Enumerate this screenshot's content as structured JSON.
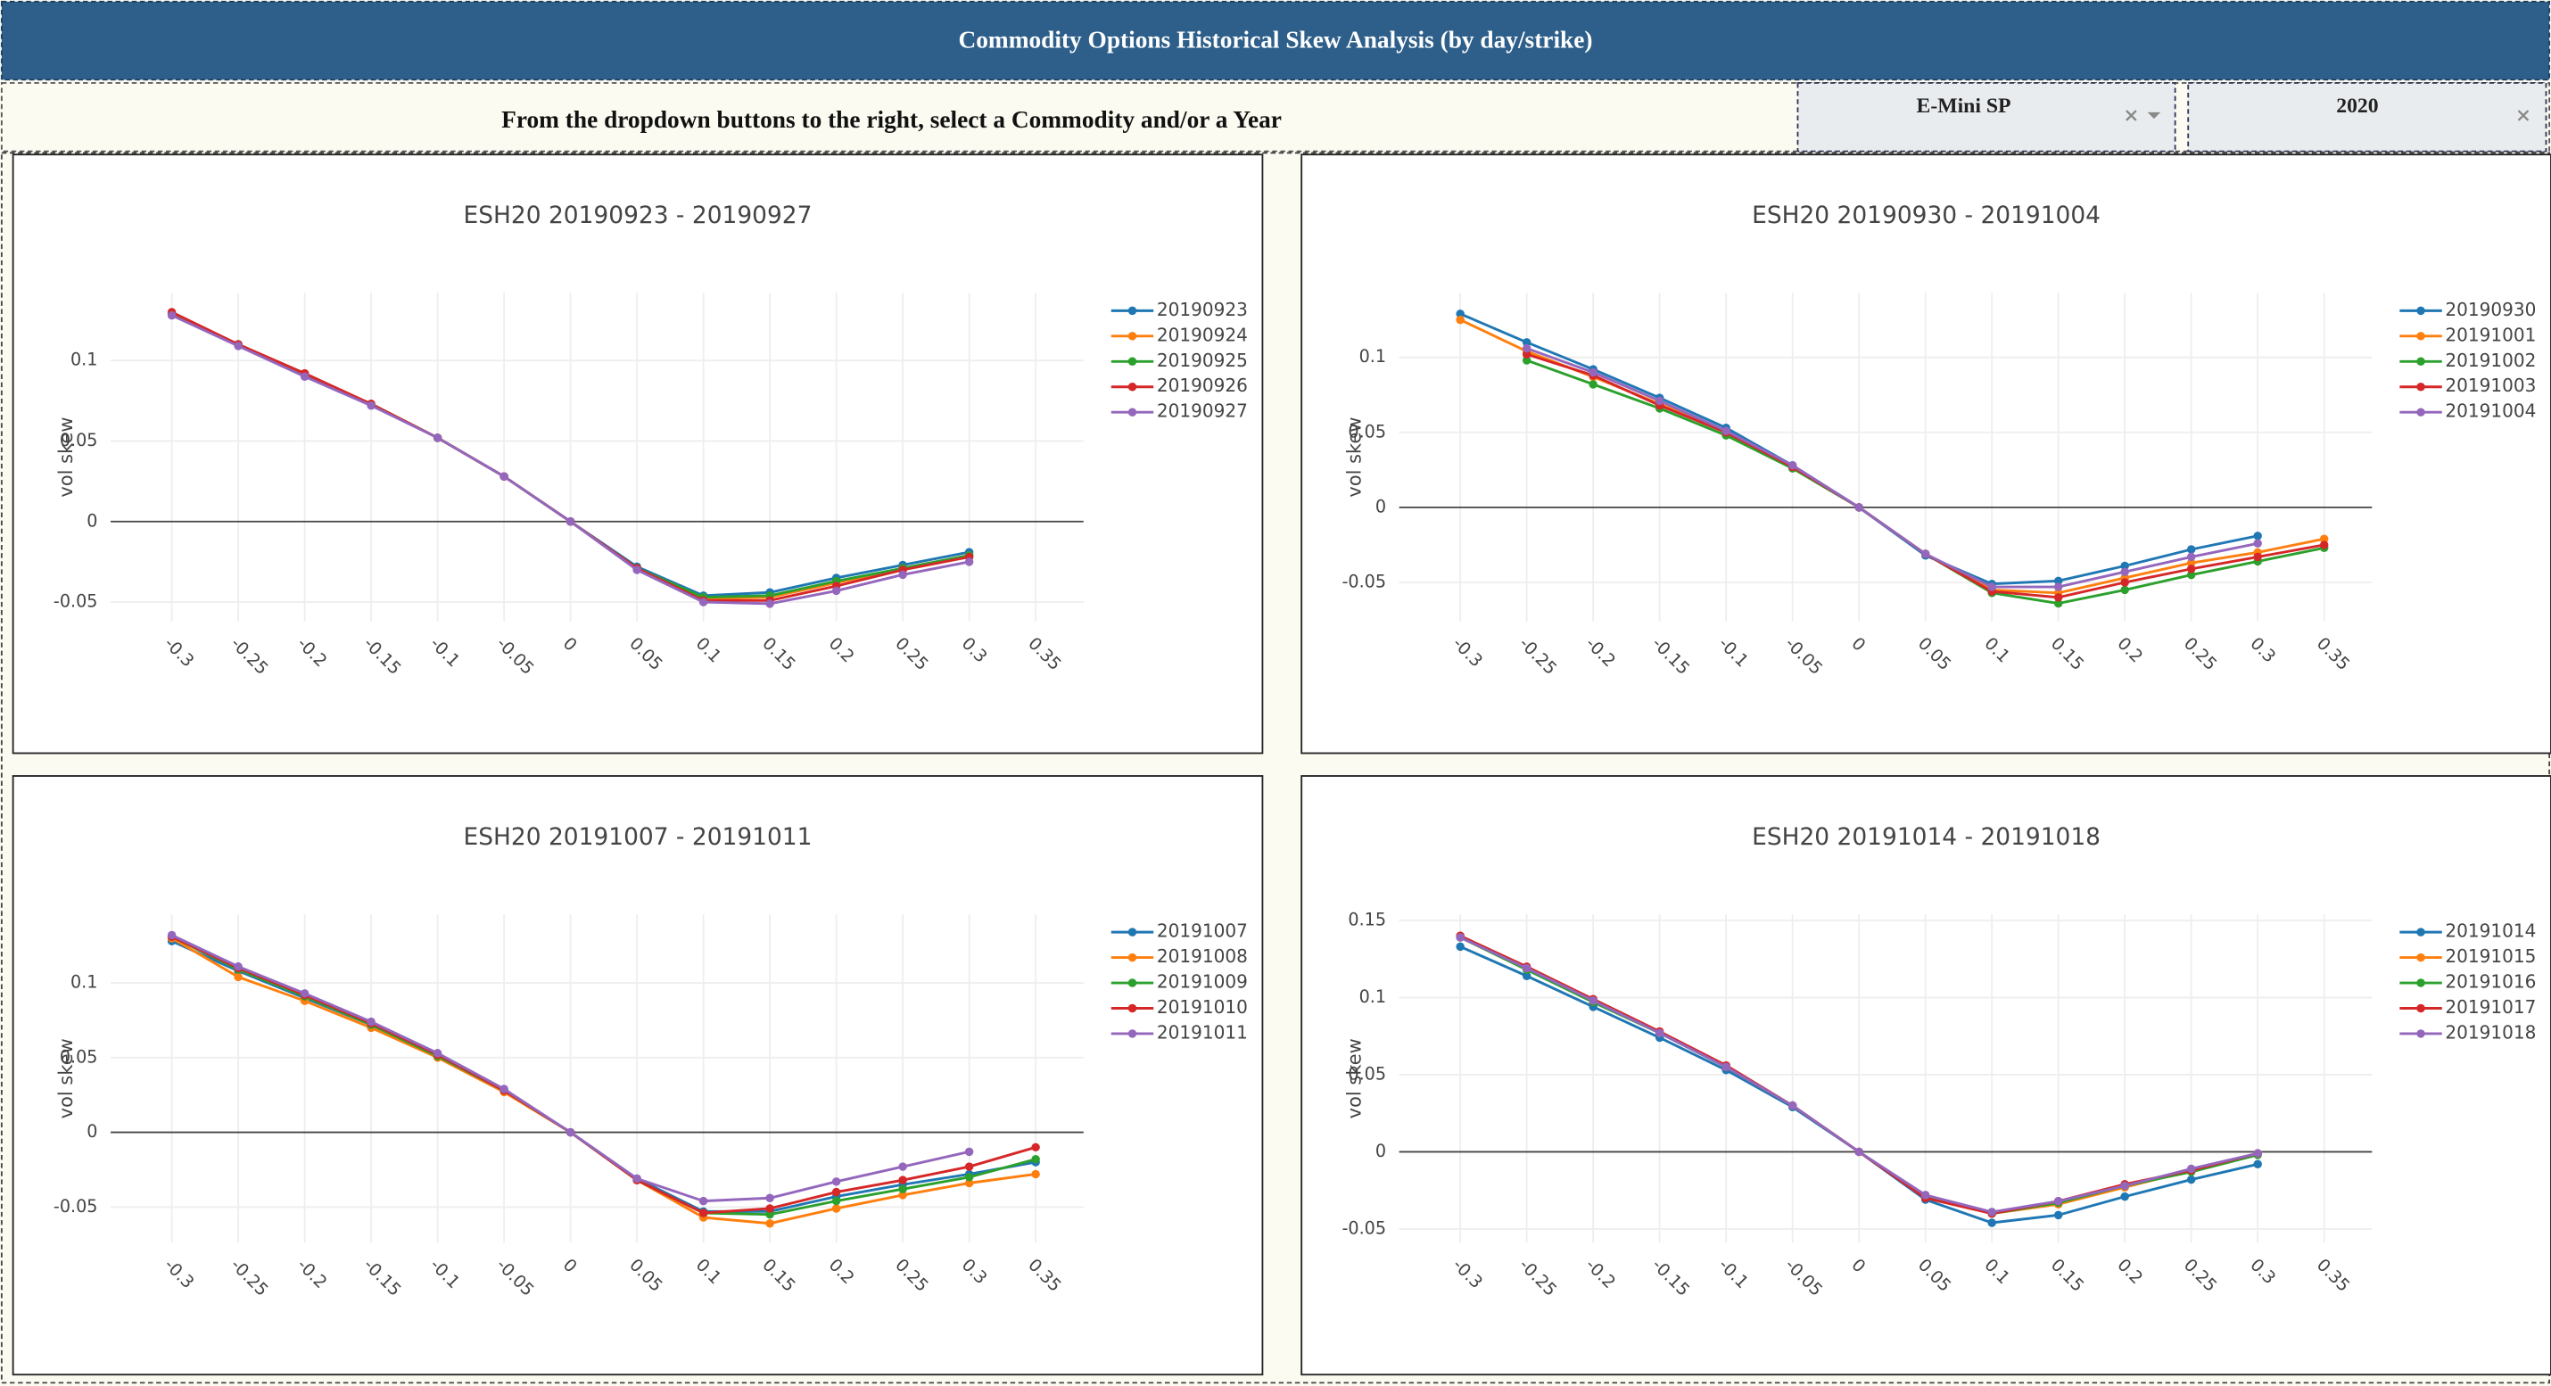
{
  "header": {
    "title": "Commodity Options Historical Skew Analysis (by day/strike)",
    "instruction": "From the dropdown buttons to the right, select a Commodity and/or a Year",
    "commodity": "E-Mini SP",
    "year": "2020"
  },
  "chart_data": [
    {
      "type": "line",
      "title": "ESH20 20190923 - 20190927",
      "y_label": "vol skew",
      "grid": true,
      "x": [
        -0.3,
        -0.25,
        -0.2,
        -0.15,
        -0.1,
        -0.05,
        0,
        0.05,
        0.1,
        0.15,
        0.2,
        0.25,
        0.3,
        0.35
      ],
      "xlim": [
        -0.346,
        0.386
      ],
      "xticks": [
        -0.3,
        -0.25,
        -0.2,
        -0.15,
        -0.1,
        -0.05,
        0,
        0.05,
        0.1,
        0.15,
        0.2,
        0.25,
        0.3,
        0.35
      ],
      "ylim": [
        -0.062,
        0.142
      ],
      "yticks": [
        -0.05,
        0,
        0.05,
        0.1
      ],
      "series": [
        {
          "name": "20190923",
          "color": "#1f77b4",
          "values": [
            0.129,
            0.11,
            0.091,
            0.073,
            0.052,
            0.028,
            0,
            -0.028,
            -0.046,
            -0.044,
            -0.035,
            -0.027,
            -0.019,
            null
          ]
        },
        {
          "name": "20190924",
          "color": "#ff7f0e",
          "values": [
            0.129,
            0.11,
            0.091,
            0.073,
            0.052,
            0.028,
            0,
            -0.029,
            -0.048,
            -0.047,
            -0.038,
            -0.029,
            -0.021,
            null
          ]
        },
        {
          "name": "20190925",
          "color": "#2ca02c",
          "values": [
            0.129,
            0.11,
            0.091,
            0.073,
            0.052,
            0.028,
            0,
            -0.029,
            -0.047,
            -0.046,
            -0.037,
            -0.029,
            -0.021,
            null
          ]
        },
        {
          "name": "20190926",
          "color": "#d62728",
          "values": [
            0.13,
            0.11,
            0.092,
            0.073,
            0.052,
            0.028,
            0,
            -0.029,
            -0.049,
            -0.049,
            -0.04,
            -0.03,
            -0.022,
            null
          ]
        },
        {
          "name": "20190927",
          "color": "#9467bd",
          "values": [
            0.128,
            0.109,
            0.09,
            0.072,
            0.052,
            0.028,
            0,
            -0.03,
            -0.05,
            -0.051,
            -0.043,
            -0.033,
            -0.025,
            null
          ]
        }
      ]
    },
    {
      "type": "line",
      "title": "ESH20 20190930 - 20191004",
      "y_label": "vol skew",
      "grid": true,
      "x": [
        -0.3,
        -0.25,
        -0.2,
        -0.15,
        -0.1,
        -0.05,
        0,
        0.05,
        0.1,
        0.15,
        0.2,
        0.25,
        0.3,
        0.35
      ],
      "xlim": [
        -0.346,
        0.386
      ],
      "xticks": [
        -0.3,
        -0.25,
        -0.2,
        -0.15,
        -0.1,
        -0.05,
        0,
        0.05,
        0.1,
        0.15,
        0.2,
        0.25,
        0.3,
        0.35
      ],
      "ylim": [
        -0.076,
        0.143
      ],
      "yticks": [
        -0.05,
        0,
        0.05,
        0.1
      ],
      "series": [
        {
          "name": "20190930",
          "color": "#1f77b4",
          "values": [
            0.129,
            0.11,
            0.092,
            0.073,
            0.053,
            0.028,
            0,
            -0.032,
            -0.051,
            -0.049,
            -0.039,
            -0.028,
            -0.019,
            null
          ]
        },
        {
          "name": "20191001",
          "color": "#ff7f0e",
          "values": [
            0.125,
            0.104,
            0.087,
            0.069,
            0.05,
            0.027,
            0,
            -0.031,
            -0.055,
            -0.057,
            -0.047,
            -0.037,
            -0.03,
            -0.021
          ]
        },
        {
          "name": "20191002",
          "color": "#2ca02c",
          "values": [
            null,
            0.098,
            0.082,
            0.066,
            0.048,
            0.026,
            0,
            -0.031,
            -0.057,
            -0.064,
            -0.055,
            -0.045,
            -0.036,
            -0.027
          ]
        },
        {
          "name": "20191003",
          "color": "#d62728",
          "values": [
            null,
            0.102,
            0.088,
            0.068,
            0.05,
            0.027,
            0,
            -0.031,
            -0.056,
            -0.06,
            -0.05,
            -0.041,
            -0.033,
            -0.025
          ]
        },
        {
          "name": "20191004",
          "color": "#9467bd",
          "values": [
            null,
            0.106,
            0.09,
            0.071,
            0.051,
            0.028,
            0,
            -0.031,
            -0.053,
            -0.053,
            -0.043,
            -0.033,
            -0.024,
            null
          ]
        }
      ]
    },
    {
      "type": "line",
      "title": "ESH20 20191007 - 20191011",
      "y_label": "vol skew",
      "grid": true,
      "x": [
        -0.3,
        -0.25,
        -0.2,
        -0.15,
        -0.1,
        -0.05,
        0,
        0.05,
        0.1,
        0.15,
        0.2,
        0.25,
        0.3,
        0.35
      ],
      "xlim": [
        -0.346,
        0.386
      ],
      "xticks": [
        -0.3,
        -0.25,
        -0.2,
        -0.15,
        -0.1,
        -0.05,
        0,
        0.05,
        0.1,
        0.15,
        0.2,
        0.25,
        0.3,
        0.35
      ],
      "ylim": [
        -0.074,
        0.146
      ],
      "yticks": [
        -0.05,
        0,
        0.05,
        0.1
      ],
      "series": [
        {
          "name": "20191007",
          "color": "#1f77b4",
          "values": [
            0.128,
            0.108,
            0.09,
            0.072,
            0.052,
            0.028,
            0,
            -0.031,
            -0.053,
            -0.053,
            -0.043,
            -0.035,
            -0.028,
            -0.02
          ]
        },
        {
          "name": "20191008",
          "color": "#ff7f0e",
          "values": [
            0.13,
            0.104,
            0.088,
            0.07,
            0.05,
            0.027,
            0,
            -0.032,
            -0.057,
            -0.061,
            -0.051,
            -0.042,
            -0.034,
            -0.028
          ]
        },
        {
          "name": "20191009",
          "color": "#2ca02c",
          "values": [
            0.131,
            0.109,
            0.091,
            0.072,
            0.051,
            0.028,
            0,
            -0.032,
            -0.054,
            -0.055,
            -0.046,
            -0.038,
            -0.03,
            -0.018
          ]
        },
        {
          "name": "20191010",
          "color": "#d62728",
          "values": [
            0.131,
            0.11,
            0.092,
            0.073,
            0.052,
            0.028,
            0,
            -0.032,
            -0.054,
            -0.051,
            -0.04,
            -0.032,
            -0.023,
            -0.01
          ]
        },
        {
          "name": "20191011",
          "color": "#9467bd",
          "values": [
            0.132,
            0.111,
            0.093,
            0.074,
            0.053,
            0.029,
            0,
            -0.031,
            -0.046,
            -0.044,
            -0.033,
            -0.023,
            -0.013,
            null
          ]
        }
      ]
    },
    {
      "type": "line",
      "title": "ESH20 20191014 - 20191018",
      "y_label": "vol skew",
      "grid": true,
      "x": [
        -0.3,
        -0.25,
        -0.2,
        -0.15,
        -0.1,
        -0.05,
        0,
        0.05,
        0.1,
        0.15,
        0.2,
        0.25,
        0.3,
        0.35
      ],
      "xlim": [
        -0.346,
        0.386
      ],
      "xticks": [
        -0.3,
        -0.25,
        -0.2,
        -0.15,
        -0.1,
        -0.05,
        0,
        0.05,
        0.1,
        0.15,
        0.2,
        0.25,
        0.3,
        0.35
      ],
      "ylim": [
        -0.059,
        0.154
      ],
      "yticks": [
        -0.05,
        0,
        0.05,
        0.1,
        0.15
      ],
      "series": [
        {
          "name": "20191014",
          "color": "#1f77b4",
          "values": [
            0.133,
            0.114,
            0.094,
            0.074,
            0.053,
            0.029,
            0,
            -0.031,
            -0.046,
            -0.041,
            -0.029,
            -0.018,
            -0.008,
            null
          ]
        },
        {
          "name": "20191015",
          "color": "#ff7f0e",
          "values": [
            0.14,
            0.119,
            0.098,
            0.077,
            0.055,
            0.03,
            0,
            -0.029,
            -0.04,
            -0.034,
            -0.023,
            -0.012,
            -0.001,
            null
          ]
        },
        {
          "name": "20191016",
          "color": "#2ca02c",
          "values": [
            0.139,
            0.118,
            0.097,
            0.077,
            0.055,
            0.03,
            0,
            -0.029,
            -0.04,
            -0.033,
            -0.022,
            -0.013,
            -0.002,
            null
          ]
        },
        {
          "name": "20191017",
          "color": "#d62728",
          "values": [
            0.14,
            0.12,
            0.099,
            0.078,
            0.056,
            0.03,
            0,
            -0.03,
            -0.04,
            -0.032,
            -0.021,
            -0.012,
            -0.001,
            null
          ]
        },
        {
          "name": "20191018",
          "color": "#9467bd",
          "values": [
            0.139,
            0.119,
            0.098,
            0.077,
            0.055,
            0.03,
            0,
            -0.028,
            -0.039,
            -0.032,
            -0.022,
            -0.011,
            -0.001,
            null
          ]
        }
      ]
    }
  ]
}
